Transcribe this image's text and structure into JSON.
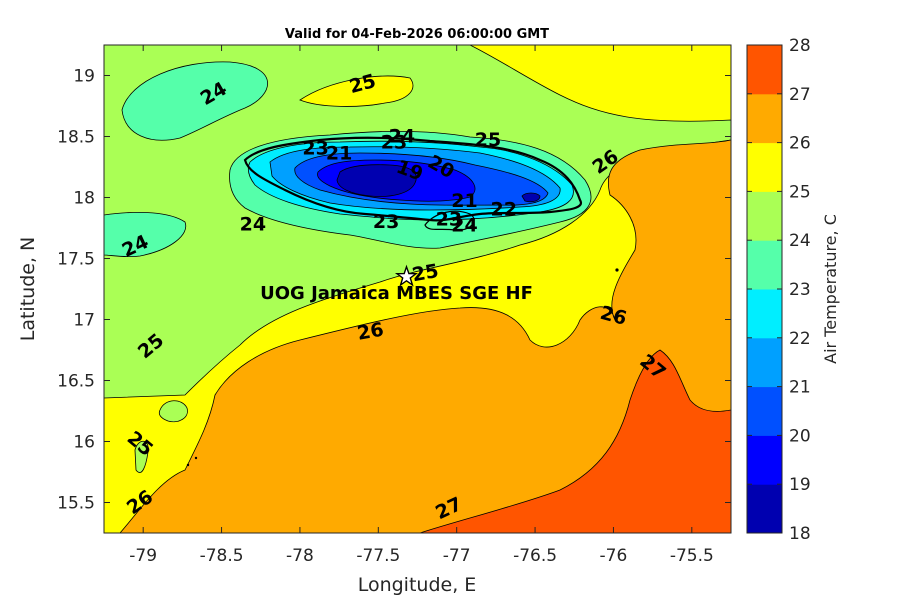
{
  "chart_data": {
    "type": "contour",
    "title": "Valid for 04-Feb-2026 06:00:00 GMT",
    "xlabel": "Longitude, E",
    "ylabel": "Latitude, N",
    "xlim": [
      -79.25,
      -75.25
    ],
    "ylim": [
      15.25,
      19.25
    ],
    "xticks": [
      -79,
      -78.5,
      -78,
      -77.5,
      -77,
      -76.5,
      -76,
      -75.5
    ],
    "yticks": [
      15.5,
      16,
      16.5,
      17,
      17.5,
      18,
      18.5,
      19
    ],
    "xtick_labels": [
      "-79",
      "-78.5",
      "-78",
      "-77.5",
      "-77",
      "-76.5",
      "-76",
      "-75.5"
    ],
    "ytick_labels": [
      "15.5",
      "16",
      "16.5",
      "17",
      "17.5",
      "18",
      "18.5",
      "19"
    ],
    "colorbar": {
      "label": "Air Temperature, C",
      "levels": [
        18,
        19,
        20,
        21,
        22,
        23,
        24,
        25,
        26,
        27,
        28
      ],
      "tick_labels": [
        "18",
        "19",
        "20",
        "21",
        "22",
        "23",
        "24",
        "25",
        "26",
        "27",
        "28"
      ],
      "colors": [
        "#0000b0",
        "#0000ff",
        "#0050ff",
        "#00a0ff",
        "#00eeff",
        "#55ffaa",
        "#aaff55",
        "#ffff00",
        "#ffaa00",
        "#ff5500",
        "#ff0000"
      ]
    },
    "contour_labels": [
      {
        "text": "24",
        "x": -78.55,
        "y": 18.85,
        "rot": -30
      },
      {
        "text": "25",
        "x": -77.6,
        "y": 18.93,
        "rot": -15
      },
      {
        "text": "25",
        "x": -76.8,
        "y": 18.47,
        "rot": 0
      },
      {
        "text": "24",
        "x": -77.35,
        "y": 18.5,
        "rot": 0
      },
      {
        "text": "23",
        "x": -77.9,
        "y": 18.4,
        "rot": 0
      },
      {
        "text": "23",
        "x": -77.4,
        "y": 18.45,
        "rot": 0
      },
      {
        "text": "21",
        "x": -77.75,
        "y": 18.36,
        "rot": 0
      },
      {
        "text": "19",
        "x": -77.3,
        "y": 18.22,
        "rot": 20
      },
      {
        "text": "20",
        "x": -77.1,
        "y": 18.25,
        "rot": 30
      },
      {
        "text": "26",
        "x": -76.05,
        "y": 18.29,
        "rot": -35
      },
      {
        "text": "21",
        "x": -76.95,
        "y": 17.97,
        "rot": 0
      },
      {
        "text": "22",
        "x": -76.7,
        "y": 17.9,
        "rot": 0
      },
      {
        "text": "23",
        "x": -77.45,
        "y": 17.8,
        "rot": 0
      },
      {
        "text": "23",
        "x": -77.05,
        "y": 17.82,
        "rot": 0
      },
      {
        "text": "24",
        "x": -78.3,
        "y": 17.78,
        "rot": 0
      },
      {
        "text": "24",
        "x": -76.95,
        "y": 17.77,
        "rot": 0
      },
      {
        "text": "24",
        "x": -79.05,
        "y": 17.6,
        "rot": -25
      },
      {
        "text": "25",
        "x": -77.2,
        "y": 17.38,
        "rot": -10
      },
      {
        "text": "26",
        "x": -77.55,
        "y": 16.9,
        "rot": -10
      },
      {
        "text": "26",
        "x": -76.0,
        "y": 17.03,
        "rot": 15
      },
      {
        "text": "25",
        "x": -78.95,
        "y": 16.78,
        "rot": -40
      },
      {
        "text": "27",
        "x": -75.75,
        "y": 16.61,
        "rot": 40
      },
      {
        "text": "25",
        "x": -79.02,
        "y": 15.98,
        "rot": 40
      },
      {
        "text": "26",
        "x": -79.02,
        "y": 15.5,
        "rot": -35
      },
      {
        "text": "27",
        "x": -77.05,
        "y": 15.45,
        "rot": -25
      }
    ],
    "site": {
      "label": "UOG Jamaica MBES SGE HF",
      "marker": "star",
      "x": -77.32,
      "y": 17.35
    }
  }
}
